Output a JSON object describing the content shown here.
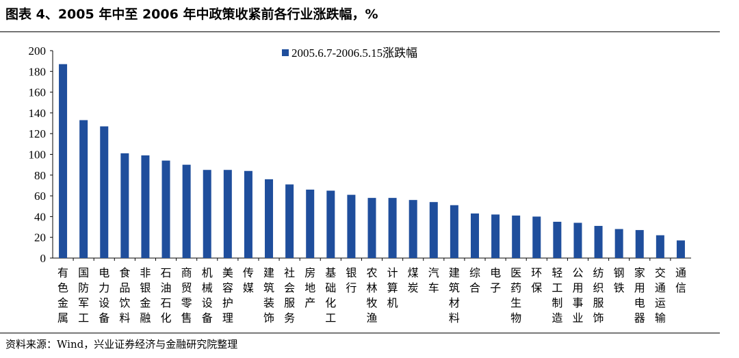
{
  "title": "图表 4、2005 年中至 2006 年中政策收紧前各行业涨跌幅，%",
  "source": "资料来源：Wind，兴业证券经济与金融研究院整理",
  "chart_data": {
    "type": "bar",
    "title": "图表 4、2005 年中至 2006 年中政策收紧前各行业涨跌幅，%",
    "xlabel": "",
    "ylabel": "",
    "ylim": [
      0,
      200
    ],
    "yticks": [
      0,
      20,
      40,
      60,
      80,
      100,
      120,
      140,
      160,
      180,
      200
    ],
    "grid": false,
    "legend_position": "top-center",
    "bar_color": "#1f4e9c",
    "categories": [
      "有色金属",
      "国防军工",
      "电力设备",
      "食品饮料",
      "非银金融",
      "石油石化",
      "商贸零售",
      "机械设备",
      "美容护理",
      "传媒",
      "建筑装饰",
      "社会服务",
      "房地产",
      "基础化工",
      "银行",
      "农林牧渔",
      "计算机",
      "煤炭",
      "汽车",
      "建筑材料",
      "综合",
      "电子",
      "医药生物",
      "环保",
      "轻工制造",
      "公用事业",
      "纺织服饰",
      "钢铁",
      "家用电器",
      "交通运输",
      "通信"
    ],
    "series": [
      {
        "name": "2005.6.7-2006.5.15涨跌幅",
        "values": [
          187,
          133,
          127,
          101,
          99,
          94,
          90,
          85,
          85,
          84,
          76,
          71,
          66,
          65,
          61,
          58,
          58,
          56,
          54,
          51,
          43,
          42,
          41,
          40,
          35,
          34,
          31,
          28,
          27,
          22,
          17
        ]
      }
    ]
  }
}
